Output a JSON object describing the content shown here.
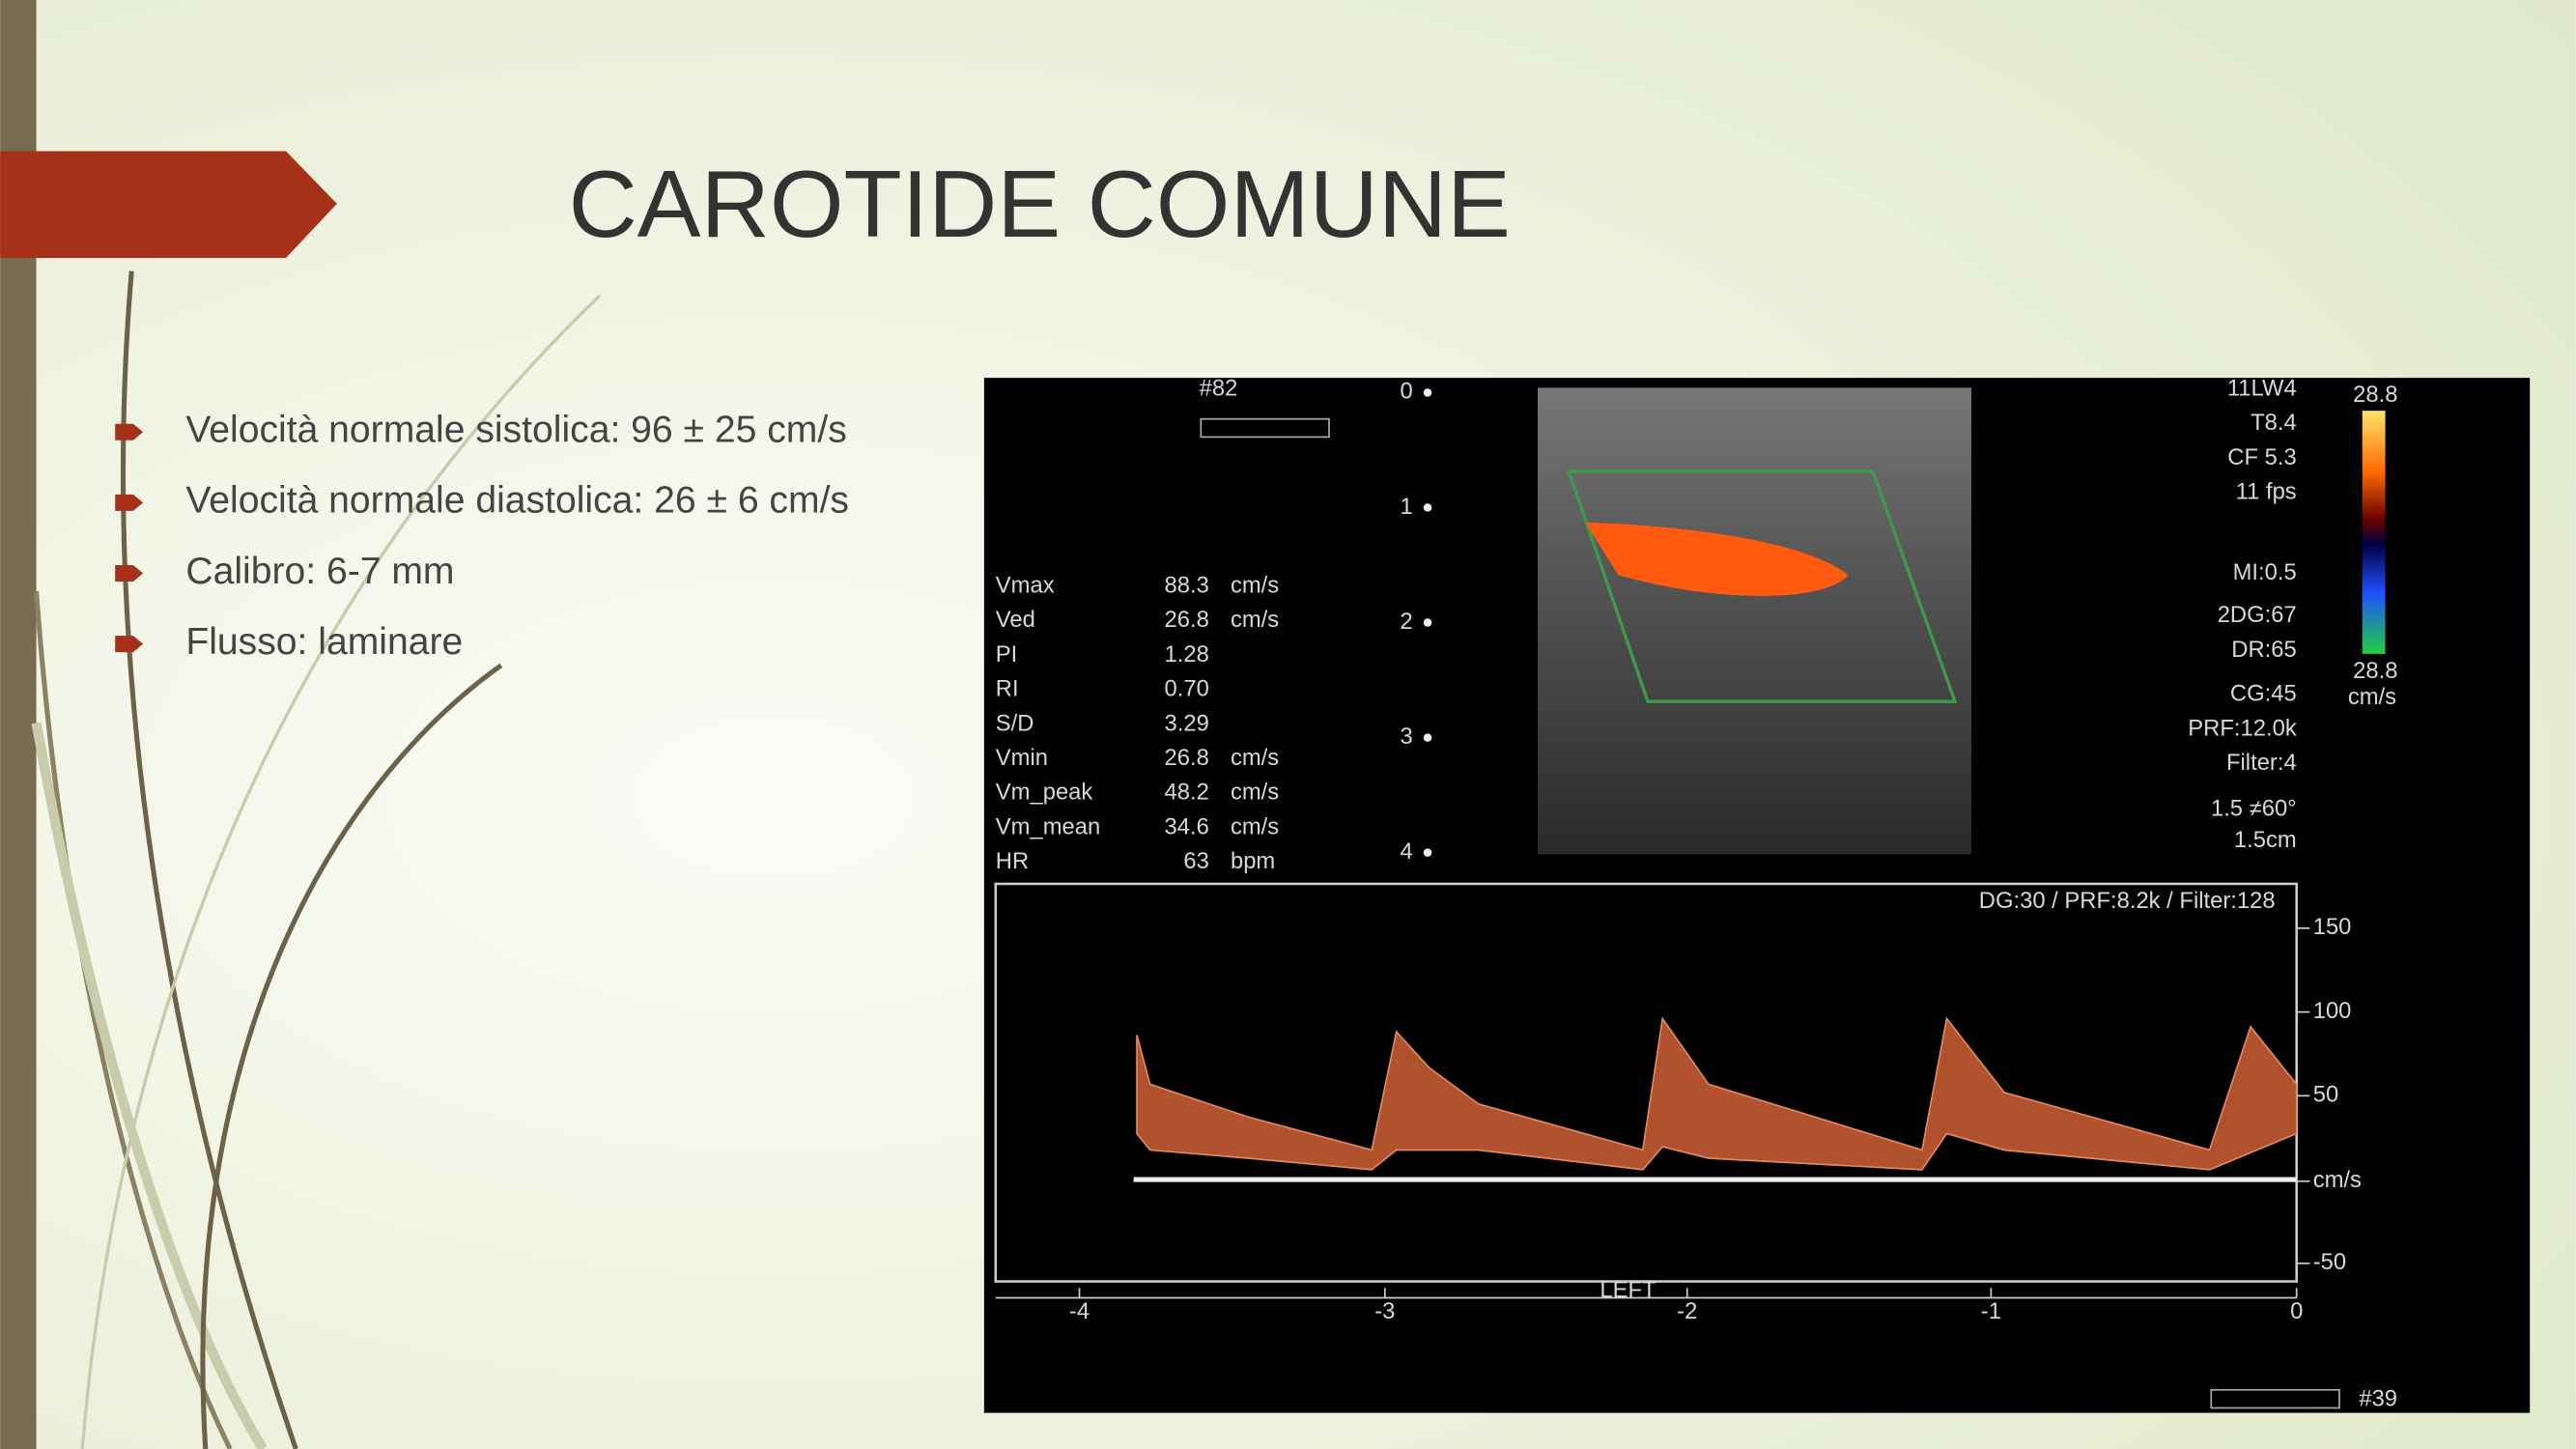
{
  "title": "CAROTIDE COMUNE",
  "bullets": [
    "Velocità normale sistolica: 96 ± 25 cm/s",
    "Velocità normale diastolica: 26 ± 6 cm/s",
    "Calibro: 6-7 mm",
    "Flusso: laminare"
  ],
  "ultrasound": {
    "top_left": "#82",
    "settings": [
      "11LW4",
      "T8.4",
      "CF 5.3",
      "11 fps",
      "MI:0.5",
      "2DG:67",
      "DR:65",
      "CG:45",
      "PRF:12.0k",
      "Filter:4",
      "1.5 ≠60°",
      "1.5cm"
    ],
    "color_scale": [
      "28.8",
      "28.8",
      "cm/s"
    ],
    "measurements": [
      [
        "Vmax",
        "88.3",
        "cm/s"
      ],
      [
        "Ved",
        "26.8",
        "cm/s"
      ],
      [
        "PI",
        "1.28",
        ""
      ],
      [
        "RI",
        "0.70",
        ""
      ],
      [
        "S/D",
        "3.29",
        ""
      ],
      [
        "Vmin",
        "26.8",
        "cm/s"
      ],
      [
        "Vm_peak",
        "48.2",
        "cm/s"
      ],
      [
        "Vm_mean",
        "34.6",
        "cm/s"
      ],
      [
        "HR",
        "63",
        "bpm"
      ]
    ],
    "depth_marks": [
      "0",
      "1",
      "2",
      "3",
      "4"
    ],
    "doppler_header": "DG:30 /   PRF:8.2k   / Filter:128",
    "velocity_ticks": [
      "150",
      "100",
      "50",
      "cm/s",
      "-50"
    ],
    "time_ticks": [
      "-4",
      "-3",
      "-2",
      "-1",
      "0"
    ],
    "label": "LEFT",
    "bottom_right": "#39"
  }
}
